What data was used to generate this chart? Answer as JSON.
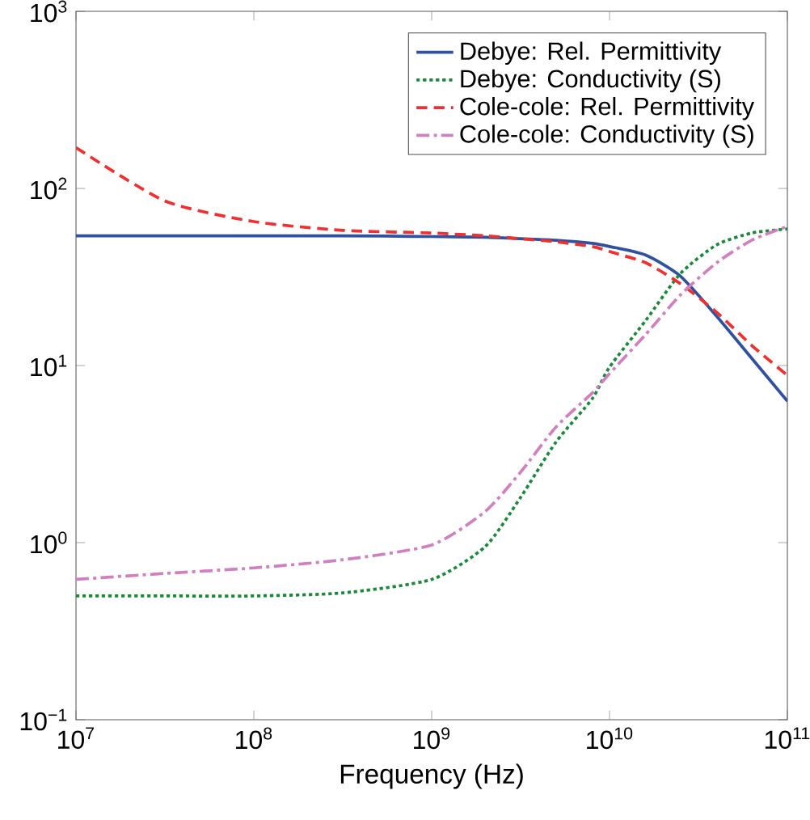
{
  "chart_data": {
    "type": "line",
    "xlabel": "Frequency (Hz)",
    "log": "xy",
    "grid": false,
    "legend": "top right",
    "marker": "none",
    "x": [
      10000000.0,
      31600000.0,
      100000000.0,
      316000000.0,
      1000000000.0,
      2000000000.0,
      3160000000.0,
      5000000000.0,
      8000000000.0,
      10000000000.0,
      16000000000.0,
      25000000000.0,
      40000000000.0,
      63000000000.0,
      100000000000.0
    ],
    "xlim": [
      10000000.0,
      100000000000.0
    ],
    "ylim": [
      0.1,
      1000
    ],
    "xticks": [
      {
        "value": 10000000.0,
        "label": "10$^{7}$"
      },
      {
        "value": 100000000.0,
        "label": "10$^{8}$"
      },
      {
        "value": 1000000000.0,
        "label": "10$^{9}$"
      },
      {
        "value": 10000000000.0,
        "label": "10$^{10}$"
      },
      {
        "value": 100000000000.0,
        "label": "10$^{11}$"
      }
    ],
    "yticks": [
      {
        "value": 0.1,
        "label": "10$^{−1}$"
      },
      {
        "value": 1,
        "label": "10$^{0}$"
      },
      {
        "value": 10,
        "label": "10$^{1}$"
      },
      {
        "value": 100,
        "label": "10$^{2}$"
      },
      {
        "value": 1000,
        "label": "10$^{3}$"
      }
    ],
    "series": [
      {
        "name": "Debye: Rel. Permittivity",
        "color": "#3050a0",
        "line_style": "solid",
        "values": [
          54,
          54,
          54,
          54,
          53.5,
          53,
          52,
          51,
          49,
          47,
          42,
          32,
          19,
          11,
          6.3
        ]
      },
      {
        "name": "Debye: Conductivity (S)",
        "color": "#1a8a3a",
        "line_style": "dotted",
        "values": [
          0.5,
          0.5,
          0.5,
          0.52,
          0.62,
          0.95,
          1.8,
          3.7,
          6.5,
          9.8,
          18,
          33,
          48,
          56,
          59
        ]
      },
      {
        "name": "Cole-cole: Rel. Permittivity",
        "color": "#ee3030",
        "line_style": "dashed",
        "values": [
          170,
          85,
          65,
          58,
          56,
          54,
          52,
          50,
          47,
          44,
          38,
          29,
          20,
          13,
          8.8
        ]
      },
      {
        "name": "Cole-cole: Conductivity (S)",
        "color": "#d080c0",
        "line_style": "dashdot",
        "values": [
          0.62,
          0.67,
          0.72,
          0.8,
          0.97,
          1.5,
          2.5,
          4.5,
          7,
          9,
          15,
          25,
          38,
          51,
          61
        ]
      }
    ]
  }
}
